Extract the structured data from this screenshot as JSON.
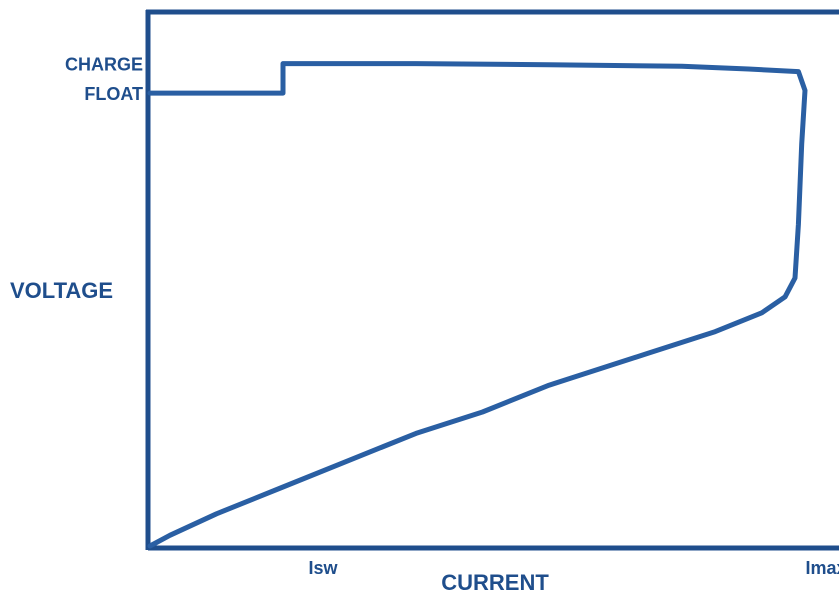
{
  "chart_data": {
    "type": "line",
    "xlabel": "CURRENT",
    "ylabel": "VOLTAGE",
    "xticks": [
      {
        "label": "Isw",
        "value": 0.2
      },
      {
        "label": "Imax",
        "value": 1.0
      }
    ],
    "yticks": [
      {
        "label": "CHARGE",
        "value": 0.9
      },
      {
        "label": "FLOAT",
        "value": 0.845
      }
    ],
    "xlim": [
      0,
      1.06
    ],
    "ylim": [
      0,
      1.0
    ],
    "grid": false,
    "colors": {
      "axis": "#1f4e8c",
      "line": "#2a5fa3",
      "text": "#1f4e8c"
    },
    "series": [
      {
        "points": [
          [
            0,
            0.845
          ],
          [
            0.2,
            0.845
          ],
          [
            0.2,
            0.9
          ],
          [
            0.4,
            0.9
          ],
          [
            0.6,
            0.898
          ],
          [
            0.8,
            0.895
          ],
          [
            0.9,
            0.89
          ],
          [
            0.975,
            0.885
          ],
          [
            0.985,
            0.85
          ],
          [
            0.98,
            0.75
          ],
          [
            0.975,
            0.6
          ],
          [
            0.97,
            0.5
          ],
          [
            0.955,
            0.465
          ],
          [
            0.92,
            0.435
          ],
          [
            0.85,
            0.4
          ],
          [
            0.75,
            0.36
          ],
          [
            0.6,
            0.3
          ],
          [
            0.5,
            0.25
          ],
          [
            0.4,
            0.21
          ],
          [
            0.3,
            0.16
          ],
          [
            0.2,
            0.11
          ],
          [
            0.1,
            0.06
          ],
          [
            0.03,
            0.02
          ],
          [
            0,
            0
          ]
        ]
      }
    ]
  }
}
